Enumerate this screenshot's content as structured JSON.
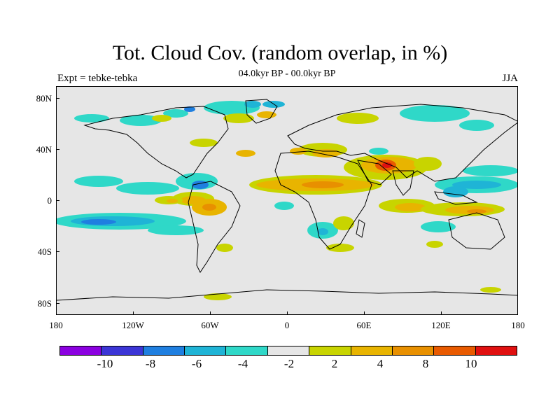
{
  "title": "Tot. Cloud Cov. (random overlap, in %)",
  "subtitle": "04.0kyr BP - 00.0kyr BP",
  "left_label": "Expt = tebke-tebka",
  "right_label": "JJA",
  "lat_labels": [
    "80N",
    "40N",
    "0",
    "40S",
    "80S"
  ],
  "lon_labels": [
    "180",
    "120W",
    "60W",
    "0",
    "60E",
    "120E",
    "180"
  ],
  "colorbar": {
    "colors": [
      "#8b00e0",
      "#3c35d6",
      "#1f7fe0",
      "#1fb4d6",
      "#2fd8c8",
      "#e6e6e6",
      "#c8d400",
      "#e8b400",
      "#e89000",
      "#e85a00",
      "#e01010"
    ],
    "labels": [
      "-10",
      "-8",
      "-6",
      "-4",
      "-2",
      "2",
      "4",
      "8",
      "10"
    ]
  }
}
